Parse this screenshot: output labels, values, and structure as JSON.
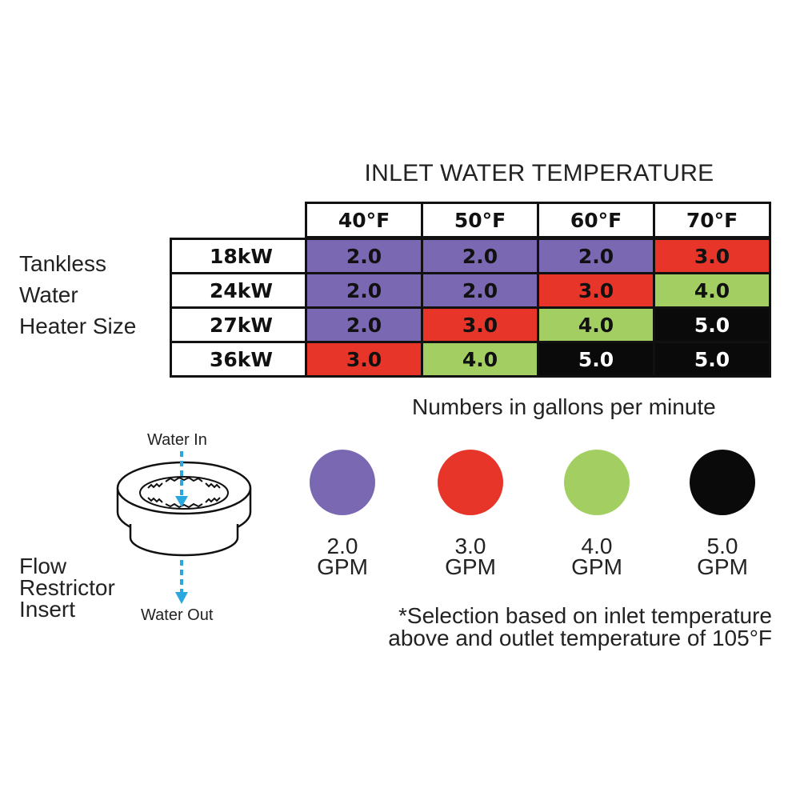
{
  "title": "INLET WATER TEMPERATURE",
  "row_header_label": [
    "Tankless",
    "Water",
    "Heater Size"
  ],
  "columns": [
    "40°F",
    "50°F",
    "60°F",
    "70°F"
  ],
  "rows": [
    {
      "label": "18kW",
      "values": [
        "2.0",
        "2.0",
        "2.0",
        "3.0"
      ]
    },
    {
      "label": "24kW",
      "values": [
        "2.0",
        "2.0",
        "3.0",
        "4.0"
      ]
    },
    {
      "label": "27kW",
      "values": [
        "2.0",
        "3.0",
        "4.0",
        "5.0"
      ]
    },
    {
      "label": "36kW",
      "values": [
        "3.0",
        "4.0",
        "5.0",
        "5.0"
      ]
    }
  ],
  "unit_note": "Numbers in gallons per minute",
  "legend": [
    {
      "value": "2.0",
      "unit": "GPM",
      "color": "#7b68b2"
    },
    {
      "value": "3.0",
      "unit": "GPM",
      "color": "#e8352a"
    },
    {
      "value": "4.0",
      "unit": "GPM",
      "color": "#a3cf62"
    },
    {
      "value": "5.0",
      "unit": "GPM",
      "color": "#0a0a0a"
    }
  ],
  "value_colors": {
    "2.0": {
      "bg": "#7b68b2",
      "fg": "#111111"
    },
    "3.0": {
      "bg": "#e8352a",
      "fg": "#111111"
    },
    "4.0": {
      "bg": "#a3cf62",
      "fg": "#111111"
    },
    "5.0": {
      "bg": "#0a0a0a",
      "fg": "#ffffff"
    }
  },
  "restrictor": {
    "water_in": "Water In",
    "water_out": "Water Out",
    "label": [
      "Flow",
      "Restrictor",
      "Insert"
    ],
    "arrow_color": "#29a8e0"
  },
  "footnote": [
    "*Selection based on inlet temperature",
    "above and outlet temperature of 105°F"
  ]
}
